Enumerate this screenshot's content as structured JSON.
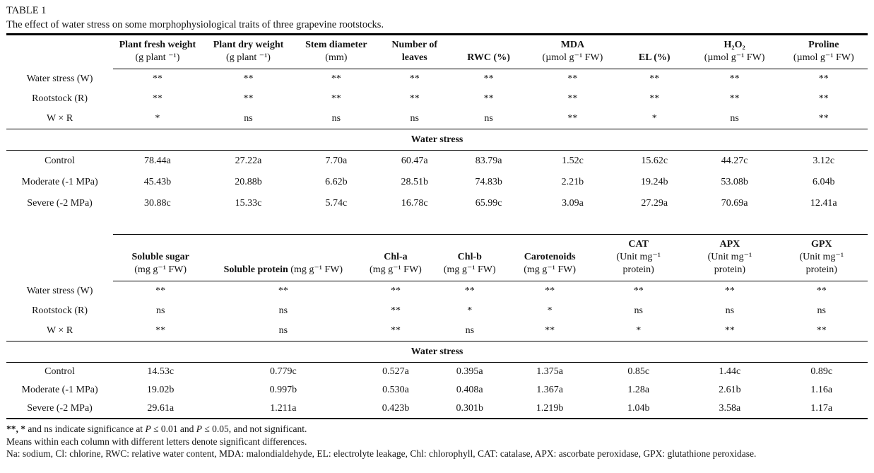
{
  "title": "TABLE 1",
  "caption": "The effect of water stress on some morphophysiological traits of three grapevine rootstocks.",
  "band_label": "Water stress",
  "section1": {
    "columns": [
      {
        "name": "Plant fresh weight",
        "unit": "(g plant ⁻¹)",
        "unit_inline": true
      },
      {
        "name": "Plant dry weight",
        "unit": "(g plant ⁻¹)"
      },
      {
        "name": "Stem diameter",
        "unit": "(mm)"
      },
      {
        "name": "Number of leaves",
        "unit": ""
      },
      {
        "name": "RWC (%)",
        "unit": ""
      },
      {
        "name": "MDA",
        "unit": "(µmol g⁻¹ FW)"
      },
      {
        "name": "EL (%)",
        "unit": ""
      },
      {
        "name": "H₂O₂",
        "unit": "(µmol g⁻¹ FW)"
      },
      {
        "name": "Proline",
        "unit": "(µmol g⁻¹ FW)"
      }
    ],
    "significance_rows": [
      {
        "label": "Water stress (W)",
        "values": [
          "**",
          "**",
          "**",
          "**",
          "**",
          "**",
          "**",
          "**",
          "**"
        ]
      },
      {
        "label": "Rootstock (R)",
        "values": [
          "**",
          "**",
          "**",
          "**",
          "**",
          "**",
          "**",
          "**",
          "**"
        ]
      },
      {
        "label": "W × R",
        "values": [
          "*",
          "ns",
          "ns",
          "ns",
          "ns",
          "**",
          "*",
          "ns",
          "**"
        ]
      }
    ],
    "data_rows": [
      {
        "label": "Control",
        "label_note": "",
        "values": [
          "78.44a",
          "27.22a",
          "7.70a",
          "60.47a",
          "83.79a",
          "1.52c",
          "15.62c",
          "44.27c",
          "3.12c"
        ]
      },
      {
        "label": "Moderate",
        "label_note": " (-1 MPa)",
        "values": [
          "45.43b",
          "20.88b",
          "6.62b",
          "28.51b",
          "74.83b",
          "2.21b",
          "19.24b",
          "53.08b",
          "6.04b"
        ]
      },
      {
        "label": "Severe",
        "label_note": " (-2 MPa)",
        "values": [
          "30.88c",
          "15.33c",
          "5.74c",
          "16.78c",
          "65.99c",
          "3.09a",
          "27.29a",
          "70.69a",
          "12.41a"
        ]
      }
    ]
  },
  "section2": {
    "columns": [
      {
        "name": "Soluble sugar",
        "unit": "(mg g⁻¹ FW)"
      },
      {
        "name": "Soluble protein",
        "unit": "(mg g⁻¹ FW)",
        "unit_inline": true
      },
      {
        "name": "Chl-a",
        "unit": "(mg g⁻¹ FW)"
      },
      {
        "name": "Chl-b",
        "unit": "(mg g⁻¹ FW)"
      },
      {
        "name": "Carotenoids",
        "unit": "(mg g⁻¹ FW)"
      },
      {
        "name": "CAT",
        "unit": "(Unit mg⁻¹",
        "unit2": "protein)"
      },
      {
        "name": "APX",
        "unit": "(Unit mg⁻¹",
        "unit2": "protein)"
      },
      {
        "name": "GPX",
        "unit": "(Unit mg⁻¹",
        "unit2": "protein)"
      }
    ],
    "significance_rows": [
      {
        "label": "Water stress (W)",
        "values": [
          "**",
          "**",
          "**",
          "**",
          "**",
          "**",
          "**",
          "**"
        ]
      },
      {
        "label": "Rootstock (R)",
        "values": [
          "ns",
          "ns",
          "**",
          "*",
          "*",
          "ns",
          "ns",
          "ns"
        ]
      },
      {
        "label": "W × R",
        "values": [
          "**",
          "ns",
          "**",
          "ns",
          "**",
          "*",
          "**",
          "**"
        ]
      }
    ],
    "data_rows": [
      {
        "label": "Control",
        "label_note": "",
        "values": [
          "14.53c",
          "0.779c",
          "0.527a",
          "0.395a",
          "1.375a",
          "0.85c",
          "1.44c",
          "0.89c"
        ]
      },
      {
        "label": "Moderate",
        "label_note": " (-1 MPa)",
        "values": [
          "19.02b",
          "0.997b",
          "0.530a",
          "0.408a",
          "1.367a",
          "1.28a",
          "2.61b",
          "1.16a"
        ]
      },
      {
        "label": "Severe",
        "label_note": " (-2 MPa)",
        "values": [
          "29.61a",
          "1.211a",
          "0.423b",
          "0.301b",
          "1.219b",
          "1.04b",
          "3.58a",
          "1.17a"
        ]
      }
    ]
  },
  "footnotes": {
    "significance": {
      "lead": "**, *",
      "rest": " and ns indicate significance at ",
      "p1": "P",
      "mid": " ≤ 0.01 and ",
      "p2": "P",
      "post": " ≤ 0.05, and not significant."
    },
    "letters": "Means within each column with different letters denote significant differences.",
    "abbreviations": "Na: sodium, Cl: chlorine, RWC: relative water content, MDA: malondialdehyde, EL: electrolyte leakage, Chl: chlorophyll, CAT: catalase, APX: ascorbate peroxidase, GPX: glutathione peroxidase."
  }
}
